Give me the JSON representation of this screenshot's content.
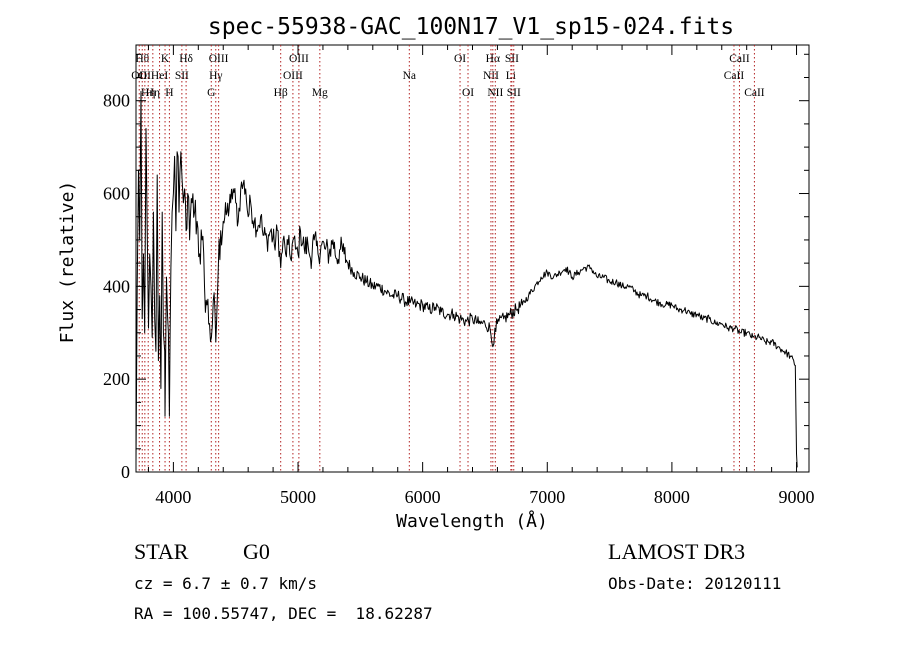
{
  "chart_data": {
    "type": "line",
    "title": "spec-55938-GAC_100N17_V1_sp15-024.fits",
    "xlabel": "Wavelength (Å)",
    "ylabel": "Flux (relative)",
    "xlim": [
      3700,
      9100
    ],
    "ylim": [
      0,
      920
    ],
    "x_ticks": [
      {
        "value": 4000,
        "label": "4000"
      },
      {
        "value": 5000,
        "label": "5000"
      },
      {
        "value": 6000,
        "label": "6000"
      },
      {
        "value": 7000,
        "label": "7000"
      },
      {
        "value": 8000,
        "label": "8000"
      },
      {
        "value": 9000,
        "label": "9000"
      }
    ],
    "y_ticks": [
      {
        "value": 0,
        "label": "0"
      },
      {
        "value": 200,
        "label": "200"
      },
      {
        "value": 400,
        "label": "400"
      },
      {
        "value": 600,
        "label": "600"
      },
      {
        "value": 800,
        "label": "800"
      }
    ],
    "series": [
      {
        "name": "spectrum",
        "x": [
          3700,
          3710,
          3720,
          3730,
          3740,
          3750,
          3760,
          3770,
          3780,
          3790,
          3800,
          3810,
          3820,
          3830,
          3840,
          3850,
          3860,
          3870,
          3880,
          3890,
          3900,
          3910,
          3920,
          3930,
          3933,
          3945,
          3960,
          3968,
          3980,
          3990,
          4000,
          4010,
          4020,
          4030,
          4045,
          4060,
          4070,
          4080,
          4090,
          4102,
          4115,
          4130,
          4150,
          4170,
          4190,
          4210,
          4230,
          4250,
          4270,
          4290,
          4305,
          4320,
          4340,
          4360,
          4380,
          4400,
          4430,
          4460,
          4480,
          4500,
          4520,
          4540,
          4560,
          4580,
          4600,
          4620,
          4650,
          4680,
          4700,
          4720,
          4750,
          4780,
          4810,
          4840,
          4861,
          4880,
          4900,
          4920,
          4940,
          4960,
          4980,
          5000,
          5020,
          5050,
          5080,
          5100,
          5130,
          5160,
          5190,
          5220,
          5250,
          5280,
          5310,
          5340,
          5370,
          5400,
          5450,
          5500,
          5550,
          5600,
          5650,
          5700,
          5750,
          5800,
          5850,
          5900,
          5950,
          6000,
          6050,
          6100,
          6150,
          6200,
          6250,
          6300,
          6350,
          6400,
          6450,
          6500,
          6540,
          6563,
          6580,
          6600,
          6650,
          6700,
          6750,
          6800,
          6850,
          6900,
          6950,
          7000,
          7050,
          7100,
          7150,
          7200,
          7250,
          7300,
          7350,
          7400,
          7450,
          7500,
          7550,
          7600,
          7650,
          7700,
          7750,
          7800,
          7850,
          7900,
          7950,
          8000,
          8050,
          8100,
          8150,
          8200,
          8250,
          8300,
          8350,
          8400,
          8450,
          8500,
          8550,
          8600,
          8650,
          8700,
          8750,
          8800,
          8850,
          8900,
          8950,
          8990,
          9000,
          9005
        ],
        "y": [
          20,
          400,
          650,
          500,
          820,
          330,
          470,
          300,
          740,
          520,
          310,
          470,
          400,
          290,
          560,
          330,
          260,
          640,
          240,
          380,
          180,
          560,
          300,
          260,
          120,
          420,
          300,
          120,
          440,
          560,
          600,
          680,
          520,
          690,
          560,
          690,
          630,
          580,
          610,
          520,
          600,
          500,
          580,
          560,
          540,
          470,
          500,
          400,
          360,
          320,
          290,
          370,
          280,
          440,
          520,
          540,
          560,
          580,
          610,
          580,
          540,
          610,
          620,
          610,
          550,
          580,
          540,
          530,
          550,
          510,
          500,
          520,
          490,
          520,
          440,
          500,
          470,
          490,
          460,
          500,
          480,
          470,
          520,
          480,
          490,
          460,
          500,
          470,
          490,
          480,
          470,
          500,
          460,
          480,
          470,
          450,
          430,
          420,
          410,
          400,
          400,
          390,
          380,
          380,
          370,
          365,
          360,
          360,
          350,
          355,
          345,
          340,
          340,
          330,
          325,
          330,
          320,
          320,
          310,
          270,
          310,
          320,
          330,
          340,
          350,
          360,
          380,
          400,
          420,
          430,
          420,
          430,
          440,
          420,
          430,
          440,
          440,
          420,
          420,
          410,
          410,
          400,
          400,
          390,
          380,
          380,
          370,
          365,
          360,
          360,
          350,
          350,
          340,
          340,
          330,
          330,
          320,
          320,
          310,
          310,
          300,
          300,
          290,
          290,
          280,
          280,
          270,
          260,
          250,
          230,
          40,
          10
        ]
      }
    ],
    "line_markers": [
      {
        "wavelength": 3726,
        "label": "OII",
        "row": 2
      },
      {
        "wavelength": 3750,
        "label": "Hθ",
        "row": 1
      },
      {
        "wavelength": 3771,
        "label": "OI",
        "row": 2
      },
      {
        "wavelength": 3798,
        "label": "Hη",
        "row": 3
      },
      {
        "wavelength": 3835,
        "label": "Hη",
        "row": 3
      },
      {
        "wavelength": 3889,
        "label": "HeI",
        "row": 2
      },
      {
        "wavelength": 3933,
        "label": "K",
        "row": 1
      },
      {
        "wavelength": 3968,
        "label": "H",
        "row": 3
      },
      {
        "wavelength": 4068,
        "label": "SII",
        "row": 2
      },
      {
        "wavelength": 4102,
        "label": "Hδ",
        "row": 1
      },
      {
        "wavelength": 4304,
        "label": "G",
        "row": 3
      },
      {
        "wavelength": 4340,
        "label": "Hγ",
        "row": 2
      },
      {
        "wavelength": 4363,
        "label": "OIII",
        "row": 1
      },
      {
        "wavelength": 4861,
        "label": "Hβ",
        "row": 3
      },
      {
        "wavelength": 4959,
        "label": "OIII",
        "row": 2
      },
      {
        "wavelength": 5007,
        "label": "OIII",
        "row": 1
      },
      {
        "wavelength": 5175,
        "label": "Mg",
        "row": 3
      },
      {
        "wavelength": 5893,
        "label": "Na",
        "row": 2
      },
      {
        "wavelength": 6300,
        "label": "OI",
        "row": 1
      },
      {
        "wavelength": 6364,
        "label": "OI",
        "row": 3
      },
      {
        "wavelength": 6548,
        "label": "NII",
        "row": 2
      },
      {
        "wavelength": 6563,
        "label": "Hα",
        "row": 1
      },
      {
        "wavelength": 6583,
        "label": "NII",
        "row": 3
      },
      {
        "wavelength": 6708,
        "label": "Li",
        "row": 2
      },
      {
        "wavelength": 6716,
        "label": "SII",
        "row": 1
      },
      {
        "wavelength": 6731,
        "label": "SII",
        "row": 3
      },
      {
        "wavelength": 8498,
        "label": "CaII",
        "row": 2
      },
      {
        "wavelength": 8542,
        "label": "CaII",
        "row": 1
      },
      {
        "wavelength": 8662,
        "label": "CaII",
        "row": 3
      }
    ]
  },
  "info": {
    "class": "STAR",
    "subclass": "G0",
    "survey": "LAMOST DR3",
    "cz": "cz = 6.7 ± 0.7 km/s",
    "obs_date": "Obs-Date: 20120111",
    "coords": "RA = 100.55747, DEC =  18.62287"
  },
  "colors": {
    "spectrum": "#000000",
    "line_marker": "#b22222",
    "axes": "#000000"
  }
}
